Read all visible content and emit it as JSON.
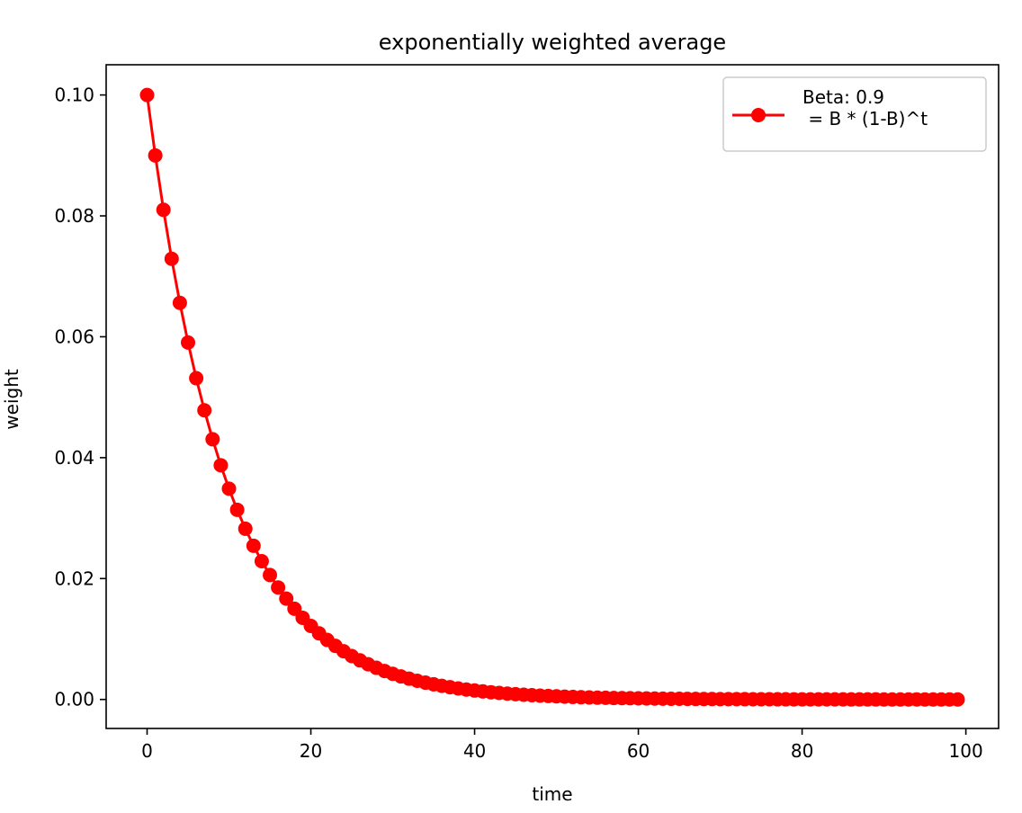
{
  "chart_data": {
    "type": "line",
    "title": "exponentially weighted average",
    "xlabel": "time",
    "ylabel": "weight",
    "xlim": [
      -5,
      104
    ],
    "ylim": [
      -0.0048,
      0.105
    ],
    "xticks": [
      0,
      20,
      40,
      60,
      80,
      100
    ],
    "xtick_labels": [
      "0",
      "20",
      "40",
      "60",
      "80",
      "100"
    ],
    "yticks": [
      0.0,
      0.02,
      0.04,
      0.06,
      0.08,
      0.1
    ],
    "ytick_labels": [
      "0.00",
      "0.02",
      "0.04",
      "0.06",
      "0.08",
      "0.10"
    ],
    "grid": false,
    "legend_position": "top-right",
    "series": [
      {
        "name": "Beta: 0.9\n = B * (1-B)^t",
        "color": "#ff0000",
        "marker": "circle",
        "x": [
          0,
          1,
          2,
          3,
          4,
          5,
          6,
          7,
          8,
          9,
          10,
          11,
          12,
          13,
          14,
          15,
          16,
          17,
          18,
          19,
          20,
          21,
          22,
          23,
          24,
          25,
          26,
          27,
          28,
          29,
          30,
          31,
          32,
          33,
          34,
          35,
          36,
          37,
          38,
          39,
          40,
          41,
          42,
          43,
          44,
          45,
          46,
          47,
          48,
          49,
          50,
          51,
          52,
          53,
          54,
          55,
          56,
          57,
          58,
          59,
          60,
          61,
          62,
          63,
          64,
          65,
          66,
          67,
          68,
          69,
          70,
          71,
          72,
          73,
          74,
          75,
          76,
          77,
          78,
          79,
          80,
          81,
          82,
          83,
          84,
          85,
          86,
          87,
          88,
          89,
          90,
          91,
          92,
          93,
          94,
          95,
          96,
          97,
          98,
          99
        ],
        "y": [
          0.1,
          0.09,
          0.081,
          0.0729,
          0.06561,
          0.059049,
          0.0531441,
          0.04782969,
          0.043046721,
          0.0387420489,
          0.03486784401,
          0.031381059609,
          0.0282429536481,
          0.02541865828329,
          0.022876792454961,
          0.0205891132094649,
          0.01853020188851841,
          0.01667718169966657,
          0.015009463529699911,
          0.013508517176729922,
          0.01215766545905693,
          0.010941898913151235,
          0.009847709021836112,
          0.0088629381196525,
          0.00797664430768725,
          0.007178979876918526,
          0.006461081889226673,
          0.005814973700304006,
          0.005233476330273605,
          0.004710128697246245,
          0.00423911582752162,
          0.003815204244769458,
          0.003433683820292512,
          0.003090315438263261,
          0.002781283894436935,
          0.002503155504993242,
          0.002252839954493918,
          0.002027555959044526,
          0.001824800363140073,
          0.001642320326826066,
          0.001478088294143459,
          0.001330279464729113,
          0.001197251518256202,
          0.001077526366430582,
          0.000969773729787524,
          0.000872796356808771,
          0.000785516721127894,
          0.000706965049015105,
          0.000636268544113594,
          0.000572641689702235,
          0.000515377520732011,
          0.00046383976865881,
          0.000417455791792929,
          0.000375710212613636,
          0.000338139191352273,
          0.000304325272217045,
          0.000273892745,
          0.00024650347,
          0.000221853123,
          0.000199667811,
          0.00017970103,
          0.000161730927,
          0.000145557834,
          0.000131002051,
          0.000117901846,
          0.000106111661,
          9.5500495e-05,
          8.5950446e-05,
          7.7355401e-05,
          6.9619861e-05,
          6.2657875e-05,
          5.6392087e-05,
          5.0752879e-05,
          4.5677591e-05,
          4.1109832e-05,
          3.6998848e-05,
          3.3298964e-05,
          2.9969067e-05,
          2.697216e-05,
          2.4274944e-05,
          2.184745e-05,
          1.9662705e-05,
          1.7696434e-05,
          1.5926791e-05,
          1.4334112e-05,
          1.2900701e-05,
          1.1610631e-05,
          1.0449568e-05,
          9.404611e-06,
          8.46415e-06,
          7.617735e-06,
          6.855961e-06,
          6.170365e-06,
          5.553329e-06,
          4.997996e-06,
          4.498196e-06,
          4.048377e-06,
          3.643539e-06,
          3.279185e-06,
          2.951267e-06
        ]
      }
    ]
  }
}
